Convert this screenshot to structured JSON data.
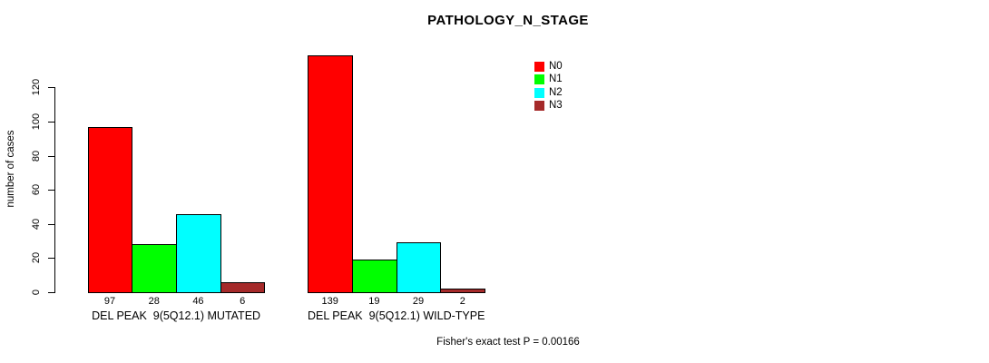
{
  "title": "PATHOLOGY_N_STAGE",
  "footer": "Fisher's exact test P = 0.00166",
  "chart_data": {
    "type": "bar",
    "title": "PATHOLOGY_N_STAGE",
    "xlabel": "",
    "ylabel": "number of cases",
    "ylim": [
      0,
      140
    ],
    "yticks": [
      0,
      20,
      40,
      60,
      80,
      100,
      120
    ],
    "grid": false,
    "legend_position": "top-right",
    "categories": [
      "DEL PEAK  9(5Q12.1) MUTATED",
      "DEL PEAK  9(5Q12.1) WILD-TYPE"
    ],
    "series": [
      {
        "name": "N0",
        "color": "#FF0000",
        "values": [
          97,
          139
        ]
      },
      {
        "name": "N1",
        "color": "#00FF00",
        "values": [
          28,
          19
        ]
      },
      {
        "name": "N2",
        "color": "#00FFFF",
        "values": [
          46,
          29
        ]
      },
      {
        "name": "N3",
        "color": "#A52A2A",
        "values": [
          6,
          2
        ]
      }
    ],
    "bar_value_labels": [
      [
        97,
        28,
        46,
        6
      ],
      [
        139,
        19,
        29,
        2
      ]
    ],
    "annotation": "Fisher's exact test P = 0.00166"
  }
}
